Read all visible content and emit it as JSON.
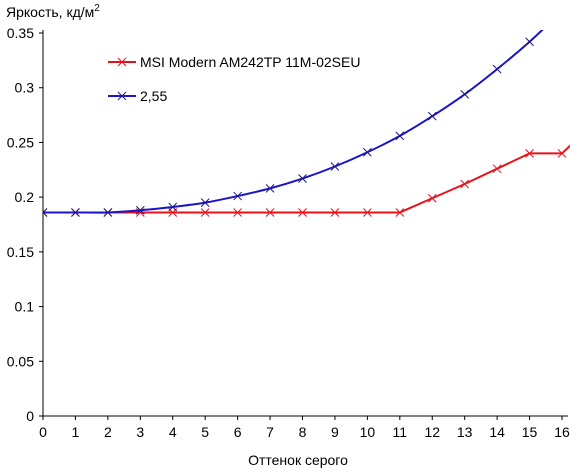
{
  "chart_data": {
    "type": "line",
    "ylabel": "Яркость, кд/м",
    "ylabel_sup": "2",
    "xlabel": "Оттенок серого",
    "xlim": [
      0,
      16
    ],
    "ylim": [
      0,
      0.35
    ],
    "x_ticks": [
      0,
      1,
      2,
      3,
      4,
      5,
      6,
      7,
      8,
      9,
      10,
      11,
      12,
      13,
      14,
      15,
      16
    ],
    "y_ticks": [
      0,
      0.05,
      0.1,
      0.15,
      0.2,
      0.25,
      0.3,
      0.35
    ],
    "y_tick_labels": [
      "0",
      "0.05",
      "0.1",
      "0.15",
      "0.2",
      "0.25",
      "0.3",
      "0.35"
    ],
    "grid": false,
    "legend_position": "top-left",
    "series": [
      {
        "name": "MSI Modern AM242TP 11M-02SEU",
        "color": "#e8121b",
        "x": [
          0,
          1,
          2,
          3,
          4,
          5,
          6,
          7,
          8,
          9,
          10,
          11,
          12,
          13,
          14,
          15,
          16
        ],
        "y": [
          0.186,
          0.186,
          0.186,
          0.186,
          0.186,
          0.186,
          0.186,
          0.186,
          0.186,
          0.186,
          0.186,
          0.186,
          0.199,
          0.212,
          0.226,
          0.24,
          0.24
        ],
        "tail": {
          "x": 16.25,
          "y": 0.247
        }
      },
      {
        "name": "2,55",
        "color": "#1c14c8",
        "x": [
          0,
          1,
          2,
          3,
          4,
          5,
          6,
          7,
          8,
          9,
          10,
          11,
          12,
          13,
          14,
          15,
          16
        ],
        "y": [
          0.186,
          0.186,
          0.186,
          0.188,
          0.191,
          0.195,
          0.201,
          0.208,
          0.217,
          0.228,
          0.241,
          0.256,
          0.274,
          0.294,
          0.317,
          0.342,
          0.37
        ]
      }
    ]
  }
}
